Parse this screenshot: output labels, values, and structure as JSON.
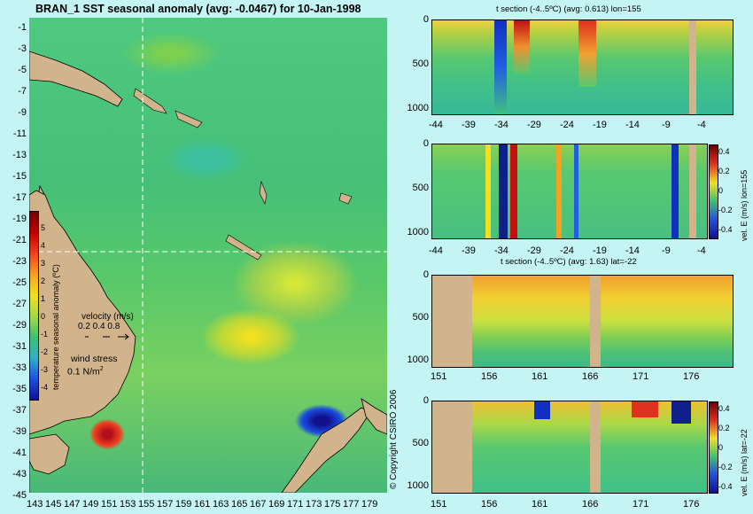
{
  "title": "BRAN_1 SST seasonal anomaly (avg: -0.0467) for 10-Jan-1998",
  "map": {
    "lat_ticks": [
      "-1",
      "-3",
      "-5",
      "-7",
      "-9",
      "-11",
      "-13",
      "-15",
      "-17",
      "-19",
      "-21",
      "-23",
      "-25",
      "-27",
      "-29",
      "-31",
      "-33",
      "-35",
      "-37",
      "-39",
      "-41",
      "-43",
      "-45"
    ],
    "lon_ticks": [
      "143",
      "145",
      "147",
      "149",
      "151",
      "153",
      "155",
      "157",
      "159",
      "161",
      "163",
      "165",
      "167",
      "169",
      "171",
      "173",
      "175",
      "177",
      "179"
    ],
    "colorbar": {
      "ticks": [
        "5",
        "4",
        "3",
        "2",
        "1",
        "0",
        "-1",
        "-2",
        "-3",
        "-4"
      ],
      "label": "temperature seasonal anomaly (ºC)",
      "colors": [
        "#700000",
        "#c00000",
        "#f04020",
        "#f8a020",
        "#f0e020",
        "#a8d848",
        "#40c070",
        "#30b0c8",
        "#2050e0",
        "#101090"
      ]
    },
    "velocity_legend": {
      "title": "velocity (m/s)",
      "values": "0.2 0.4 0.8"
    },
    "wind_legend": {
      "title": "wind stress",
      "value": "0.1 N/m",
      "exponent": "2"
    },
    "copyright": "© Copyright CSIRO 2006"
  },
  "panels": {
    "p1": {
      "title": "t section (-4..5ºC) (avg: 0.613) lon=155",
      "x_ticks": [
        "-44",
        "-39",
        "-34",
        "-29",
        "-24",
        "-19",
        "-14",
        "-9",
        "-4"
      ],
      "y_ticks": [
        "0",
        "500",
        "1000"
      ]
    },
    "p2": {
      "x_ticks": [
        "-44",
        "-39",
        "-34",
        "-29",
        "-24",
        "-19",
        "-14",
        "-9",
        "-4"
      ],
      "y_ticks": [
        "0",
        "500",
        "1000"
      ],
      "cb_label": "vel. E (m/s) lon=155",
      "cb_ticks": [
        "0.4",
        "0.2",
        "0",
        "-0.2",
        "-0.4"
      ]
    },
    "p3": {
      "title": "t section (-4..5ºC) (avg: 1.63) lat=-22",
      "x_ticks": [
        "151",
        "156",
        "161",
        "166",
        "171",
        "176"
      ],
      "y_ticks": [
        "0",
        "500",
        "1000"
      ]
    },
    "p4": {
      "x_ticks": [
        "151",
        "156",
        "161",
        "166",
        "171",
        "176"
      ],
      "y_ticks": [
        "0",
        "500",
        "1000"
      ],
      "cb_label": "vel. E (m/s) lat=-22",
      "cb_ticks": [
        "0.4",
        "0.2",
        "0",
        "-0.2",
        "-0.4"
      ]
    }
  },
  "colors": {
    "land": "#d2b48c",
    "background": "#c4f4f4"
  }
}
